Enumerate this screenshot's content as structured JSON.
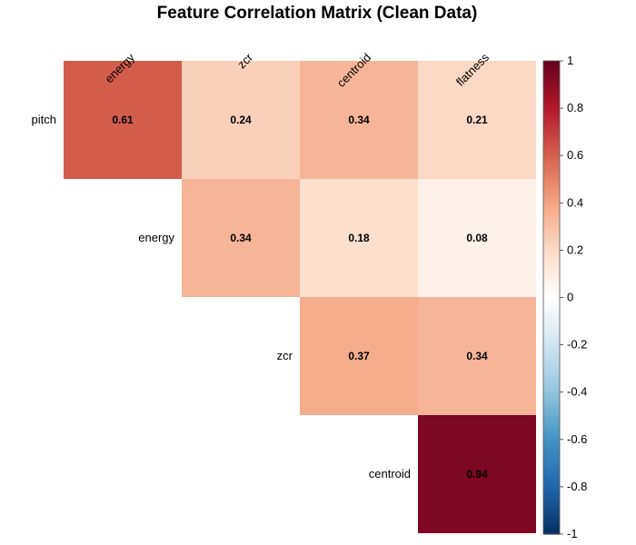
{
  "chart_data": {
    "type": "heatmap",
    "title": "Feature Correlation Matrix (Clean Data)",
    "row_labels": [
      "pitch",
      "energy",
      "zcr",
      "centroid"
    ],
    "col_labels": [
      "energy",
      "zcr",
      "centroid",
      "flatness"
    ],
    "values": [
      [
        0.61,
        0.24,
        0.34,
        0.21
      ],
      [
        null,
        0.34,
        0.18,
        0.08
      ],
      [
        null,
        null,
        0.37,
        0.34
      ],
      [
        null,
        null,
        null,
        0.94
      ]
    ],
    "value_labels": [
      [
        "0.61",
        "0.24",
        "0.34",
        "0.21"
      ],
      [
        "",
        "0.34",
        "0.18",
        "0.08"
      ],
      [
        "",
        "",
        "0.37",
        "0.34"
      ],
      [
        "",
        "",
        "",
        "0.94"
      ]
    ],
    "color_scale": {
      "range": [
        -1,
        1
      ],
      "ticks": [
        "1",
        "0.8",
        "0.6",
        "0.4",
        "0.2",
        "0",
        "-0.2",
        "-0.4",
        "-0.6",
        "-0.8",
        "-1"
      ],
      "colors": [
        "#67001f",
        "#b2182b",
        "#d6604d",
        "#f4a582",
        "#fddbc7",
        "#ffffff",
        "#d1e5f0",
        "#92c5de",
        "#4393c3",
        "#2166ac",
        "#053061"
      ],
      "position": "right"
    },
    "layout": "upper-triangle"
  }
}
